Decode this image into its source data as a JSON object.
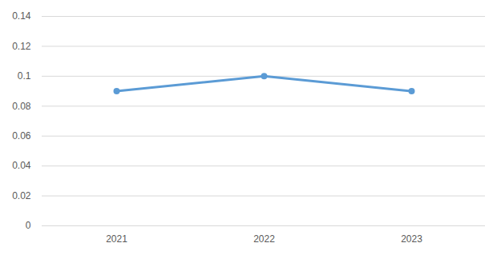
{
  "chart_data": {
    "type": "line",
    "categories": [
      "2021",
      "2022",
      "2023"
    ],
    "series": [
      {
        "name": null,
        "color": "#5b9bd5",
        "values": [
          0.09,
          0.1,
          0.09
        ],
        "marker": "circle",
        "line_style": "solid"
      }
    ],
    "ylim": [
      0,
      0.14
    ],
    "yticks": [
      0,
      0.02,
      0.04,
      0.06,
      0.08,
      0.1,
      0.12,
      0.14
    ],
    "grid": true
  }
}
